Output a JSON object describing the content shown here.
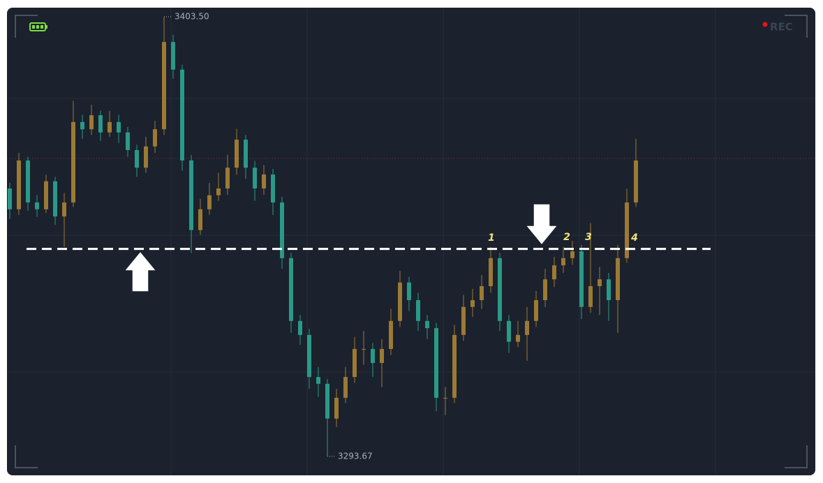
{
  "chart_data": {
    "type": "candlestick",
    "ylim": [
      3289.1,
      3405.6
    ],
    "up_color": "#9c7a34",
    "down_color": "#2a9a88",
    "open": [
      3360.6,
      3355.4,
      3367.6,
      3357.1,
      3355.4,
      3362.4,
      3353.6,
      3357.1,
      3377.2,
      3375.4,
      3378.9,
      3374.6,
      3377.2,
      3374.6,
      3370.2,
      3365.8,
      3371.1,
      3375.4,
      3397.2,
      3390.3,
      3367.6,
      3350.2,
      3355.4,
      3358.9,
      3360.6,
      3365.8,
      3372.8,
      3365.8,
      3360.6,
      3364.1,
      3357.1,
      3343.2,
      3327.5,
      3324.0,
      3313.5,
      3311.8,
      3303.1,
      3308.3,
      3313.5,
      3320.5,
      3320.5,
      3317.0,
      3320.5,
      3327.5,
      3337.1,
      3332.7,
      3327.5,
      3325.7,
      3308.3,
      3308.3,
      3324.0,
      3331.0,
      3332.7,
      3336.2,
      3343.2,
      3327.5,
      3322.3,
      3324.0,
      3327.5,
      3332.7,
      3337.9,
      3341.4,
      3343.2,
      3344.9,
      3331.0,
      3336.2,
      3337.9,
      3332.7,
      3343.2,
      3357.1
    ],
    "high": [
      3362.0,
      3369.5,
      3368.5,
      3359.0,
      3364.0,
      3363.5,
      3359.5,
      3382.5,
      3379.0,
      3381.5,
      3380.0,
      3380.0,
      3379.0,
      3376.0,
      3371.5,
      3373.5,
      3377.5,
      3403.5,
      3399.0,
      3391.5,
      3369.0,
      3358.0,
      3362.0,
      3364.5,
      3369.0,
      3375.5,
      3374.0,
      3367.5,
      3366.5,
      3365.5,
      3358.5,
      3344.5,
      3329.0,
      3325.5,
      3316.0,
      3313.0,
      3310.5,
      3316.0,
      3323.5,
      3325.0,
      3322.0,
      3323.0,
      3330.5,
      3340.0,
      3338.5,
      3334.5,
      3329.0,
      3327.0,
      3311.0,
      3326.5,
      3334.0,
      3335.5,
      3339.0,
      3346.0,
      3344.5,
      3329.0,
      3327.5,
      3331.0,
      3335.0,
      3340.5,
      3343.5,
      3346.0,
      3347.5,
      3346.5,
      3352.0,
      3341.0,
      3339.5,
      3346.5,
      3360.5,
      3373.0
    ],
    "low": [
      3353.0,
      3354.0,
      3355.0,
      3353.5,
      3354.5,
      3351.5,
      3346.0,
      3356.0,
      3373.0,
      3374.0,
      3372.5,
      3373.5,
      3372.0,
      3368.5,
      3363.5,
      3364.5,
      3369.5,
      3374.0,
      3388.0,
      3365.0,
      3344.5,
      3349.0,
      3354.0,
      3357.5,
      3359.0,
      3364.0,
      3363.0,
      3357.5,
      3359.0,
      3354.0,
      3340.5,
      3324.5,
      3321.5,
      3310.5,
      3308.5,
      3293.67,
      3301.0,
      3307.0,
      3312.0,
      3316.5,
      3313.5,
      3311.0,
      3319.0,
      3326.0,
      3330.0,
      3325.0,
      3323.0,
      3305.0,
      3304.0,
      3307.0,
      3322.5,
      3328.5,
      3330.5,
      3334.5,
      3325.0,
      3319.5,
      3321.0,
      3317.5,
      3326.0,
      3331.0,
      3336.0,
      3339.5,
      3341.5,
      3328.0,
      3329.5,
      3329.0,
      3327.5,
      3324.5,
      3342.0,
      3356.0
    ],
    "close": [
      3355.4,
      3367.6,
      3357.1,
      3355.4,
      3362.4,
      3353.6,
      3357.1,
      3377.2,
      3375.4,
      3378.9,
      3374.6,
      3377.2,
      3374.6,
      3370.2,
      3365.8,
      3371.1,
      3375.4,
      3397.2,
      3390.3,
      3367.6,
      3350.2,
      3355.4,
      3358.9,
      3360.6,
      3365.8,
      3372.8,
      3365.8,
      3360.6,
      3364.1,
      3357.1,
      3343.2,
      3327.5,
      3324.0,
      3313.5,
      3311.8,
      3303.1,
      3308.3,
      3313.5,
      3320.5,
      3320.5,
      3317.0,
      3320.5,
      3327.5,
      3337.1,
      3332.7,
      3327.5,
      3325.7,
      3308.3,
      3308.3,
      3324.0,
      3331.0,
      3332.7,
      3336.2,
      3343.2,
      3327.5,
      3322.3,
      3324.0,
      3327.5,
      3332.7,
      3337.9,
      3341.4,
      3343.2,
      3344.9,
      3331.0,
      3336.2,
      3337.9,
      3332.7,
      3343.2,
      3357.1,
      3367.6
    ],
    "high_label": {
      "value": 3403.5,
      "label": "3403.50"
    },
    "low_label": 3293.67,
    "support_level": 3345.5,
    "reference_line": 3368.1,
    "markers": [
      "1",
      "2",
      "3",
      "4"
    ],
    "rec_label": "REC"
  }
}
